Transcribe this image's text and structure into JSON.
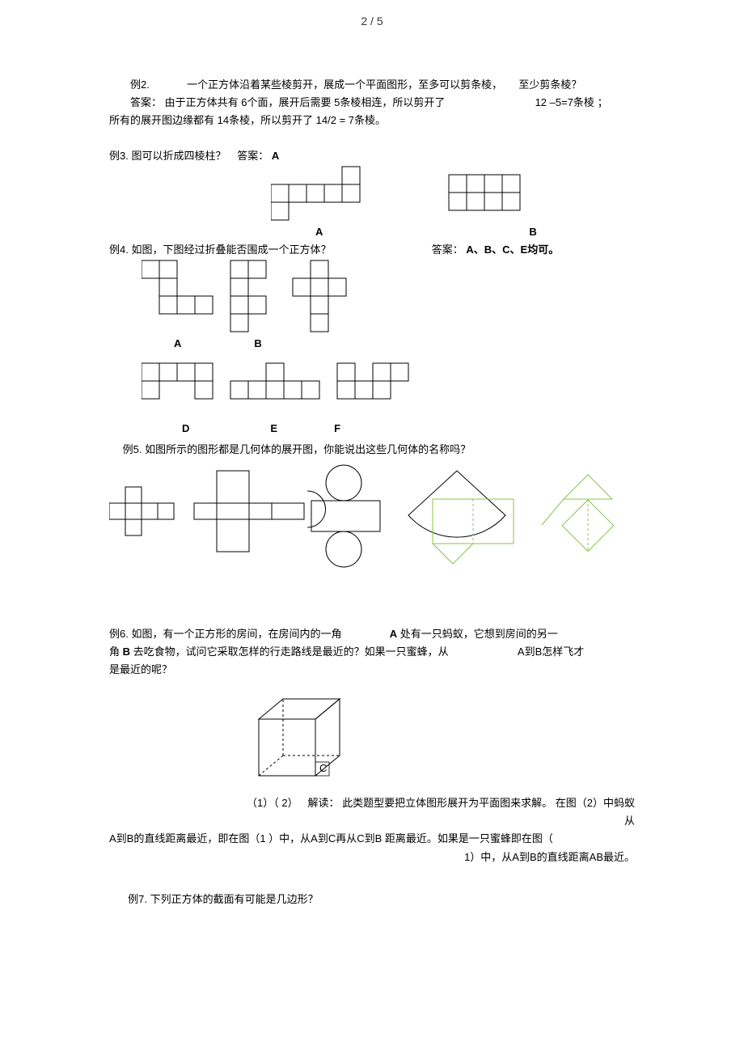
{
  "header": {
    "pageIndicator": "2 / 5"
  },
  "ex2": {
    "label": "例2.",
    "q_line1a": "一个正方体沿着某些棱剪开，展成一个平面图形，至多可以剪条棱，",
    "q_line1b": "至少剪条棱？",
    "a_prefix": "答案：",
    "a_line1a": "由于正方体共有 6个面，展开后需要 5条棱相连，所以剪开了",
    "a_calc": "12 –5=7条棱",
    "a_tail": "；",
    "a_line2": "所有的展开图边缘都有 14条棱，所以剪开了 14/2 = 7条棱。"
  },
  "ex3": {
    "label": "例3.",
    "q": "图可以折成四棱柱？",
    "a_prefix": "答案：",
    "a": "A",
    "optA": "A",
    "optB": "B",
    "diagram": {
      "cell": 22,
      "stroke": "#000000",
      "strokeWidth": 1,
      "A_squares": [
        [
          4,
          0
        ],
        [
          0,
          1
        ],
        [
          1,
          1
        ],
        [
          2,
          1
        ],
        [
          3,
          1
        ],
        [
          4,
          1
        ],
        [
          0,
          2
        ]
      ],
      "B_squares": [
        [
          0,
          0
        ],
        [
          1,
          0
        ],
        [
          2,
          0
        ],
        [
          3,
          0
        ],
        [
          0,
          1
        ],
        [
          1,
          1
        ],
        [
          2,
          1
        ],
        [
          3,
          1
        ]
      ],
      "A_offset_x": 0,
      "B_offset_x_cells": 10
    }
  },
  "ex4": {
    "label": "例4.",
    "q": "如图，下图经过折叠能否围成一个正方体？",
    "a_prefix": "答案：",
    "a": "A、B、C、E均可。",
    "optA": "A",
    "optB": "B",
    "optD": "D",
    "optE": "E",
    "optF": "F",
    "diagram": {
      "cell": 22,
      "stroke": "#000000",
      "strokeWidth": 1,
      "row1": {
        "A": {
          "ox": 0,
          "squares": [
            [
              0,
              0
            ],
            [
              1,
              0
            ],
            [
              1,
              1
            ],
            [
              1,
              2
            ],
            [
              2,
              2
            ],
            [
              3,
              2
            ]
          ]
        },
        "B": {
          "ox": 5,
          "squares": [
            [
              0,
              0
            ],
            [
              1,
              0
            ],
            [
              0,
              1
            ],
            [
              0,
              2
            ],
            [
              1,
              2
            ],
            [
              0,
              3
            ]
          ]
        },
        "C": {
          "ox": 8.5,
          "squares": [
            [
              1,
              0
            ],
            [
              0,
              1
            ],
            [
              1,
              1
            ],
            [
              2,
              1
            ],
            [
              1,
              2
            ],
            [
              1,
              3
            ]
          ]
        }
      },
      "row2": {
        "D": {
          "ox": 0,
          "squares": [
            [
              0,
              0
            ],
            [
              1,
              0
            ],
            [
              2,
              0
            ],
            [
              3,
              0
            ],
            [
              0,
              1
            ],
            [
              3,
              1
            ]
          ]
        },
        "E": {
          "ox": 5,
          "squares": [
            [
              0,
              1
            ],
            [
              1,
              1
            ],
            [
              2,
              1
            ],
            [
              3,
              1
            ],
            [
              4,
              1
            ],
            [
              2,
              0
            ]
          ]
        },
        "F": {
          "ox": 11,
          "squares": [
            [
              0,
              0
            ],
            [
              0,
              1
            ],
            [
              1,
              1
            ],
            [
              2,
              1
            ],
            [
              2,
              0
            ],
            [
              3,
              0
            ]
          ]
        }
      }
    }
  },
  "ex5": {
    "label": "例5.",
    "q": "如图所示的图形都是几何体的展开图，你能说出这些几何体的名称吗？",
    "diagram": {
      "stroke": "#000000",
      "stroke_green": "#8bc34a",
      "strokeWidth": 1
    }
  },
  "ex6": {
    "label": "例6.",
    "q_part1": "如图，有一个正方形的房间，在房间内的一角",
    "q_A": "A",
    "q_part2": "处有一只蚂蚁，它想到房间的另一",
    "q_line2a": "角",
    "q_B": "B",
    "q_line2b": "去吃食物，试问它采取怎样的行走路线是最近的？如果一只蜜蜂，从",
    "q_line2c": "A到B怎样飞才",
    "q_line3": "是最近的呢？",
    "figLabels": "（1）（ 2）",
    "sol_prefix": "解读：",
    "sol_line1": "此类题型要把立体图形展开为平面图来求解。 在图（2）中蚂蚁从",
    "sol_line2": "A到B的直线距离最近，即在图（1 ）中，从A到C再从C到B 距离最近。如果是一只蜜蜂即在图（",
    "sol_line3": "1）中，从A到B的直线距离AB最近。",
    "cube": {
      "label_C": "C"
    }
  },
  "ex7": {
    "label": "例7.",
    "q": "下列正方体的截面有可能是几边形？"
  }
}
